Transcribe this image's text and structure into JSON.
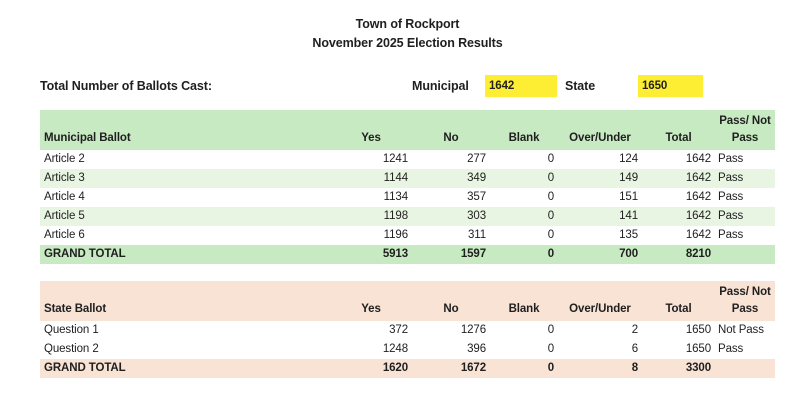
{
  "colors": {
    "m_header": "#c8eac2",
    "m_stripe": "#e9f5e3",
    "s_header": "#f8e3d5",
    "yellow": "#fdee33",
    "text": "#1f1f1f"
  },
  "title": {
    "line1": "Town of Rockport",
    "line2": "November 2025 Election Results"
  },
  "ballots_cast": {
    "label": "Total Number of Ballots Cast:",
    "municipal_label": "Municipal",
    "municipal_value": "1642",
    "state_label": "State",
    "state_value": "1650"
  },
  "municipal_table": {
    "header": {
      "name": "Municipal Ballot",
      "yes": "Yes",
      "no": "No",
      "blank": "Blank",
      "over_under": "Over/Under",
      "total": "Total",
      "pass_line1": "Pass/ Not",
      "pass_line2": "Pass"
    },
    "rows": [
      {
        "label": "Article 2",
        "yes": 1241,
        "no": 277,
        "blank": 0,
        "over_under": 124,
        "total": 1642,
        "pass": "Pass"
      },
      {
        "label": "Article 3",
        "yes": 1144,
        "no": 349,
        "blank": 0,
        "over_under": 149,
        "total": 1642,
        "pass": "Pass"
      },
      {
        "label": "Article 4",
        "yes": 1134,
        "no": 357,
        "blank": 0,
        "over_under": 151,
        "total": 1642,
        "pass": "Pass"
      },
      {
        "label": "Article 5",
        "yes": 1198,
        "no": 303,
        "blank": 0,
        "over_under": 141,
        "total": 1642,
        "pass": "Pass"
      },
      {
        "label": "Article 6",
        "yes": 1196,
        "no": 311,
        "blank": 0,
        "over_under": 135,
        "total": 1642,
        "pass": "Pass"
      }
    ],
    "grand_total": {
      "label": "GRAND TOTAL",
      "yes": 5913,
      "no": 1597,
      "blank": 0,
      "over_under": 700,
      "total": 8210,
      "pass": ""
    }
  },
  "state_table": {
    "header": {
      "name": "State Ballot",
      "yes": "Yes",
      "no": "No",
      "blank": "Blank",
      "over_under": "Over/Under",
      "total": "Total",
      "pass_line1": "Pass/ Not",
      "pass_line2": "Pass"
    },
    "rows": [
      {
        "label": "Question 1",
        "yes": 372,
        "no": 1276,
        "blank": 0,
        "over_under": 2,
        "total": 1650,
        "pass": "Not Pass"
      },
      {
        "label": "Question 2",
        "yes": 1248,
        "no": 396,
        "blank": 0,
        "over_under": 6,
        "total": 1650,
        "pass": "Pass"
      }
    ],
    "grand_total": {
      "label": "GRAND TOTAL",
      "yes": 1620,
      "no": 1672,
      "blank": 0,
      "over_under": 8,
      "total": 3300,
      "pass": ""
    }
  }
}
